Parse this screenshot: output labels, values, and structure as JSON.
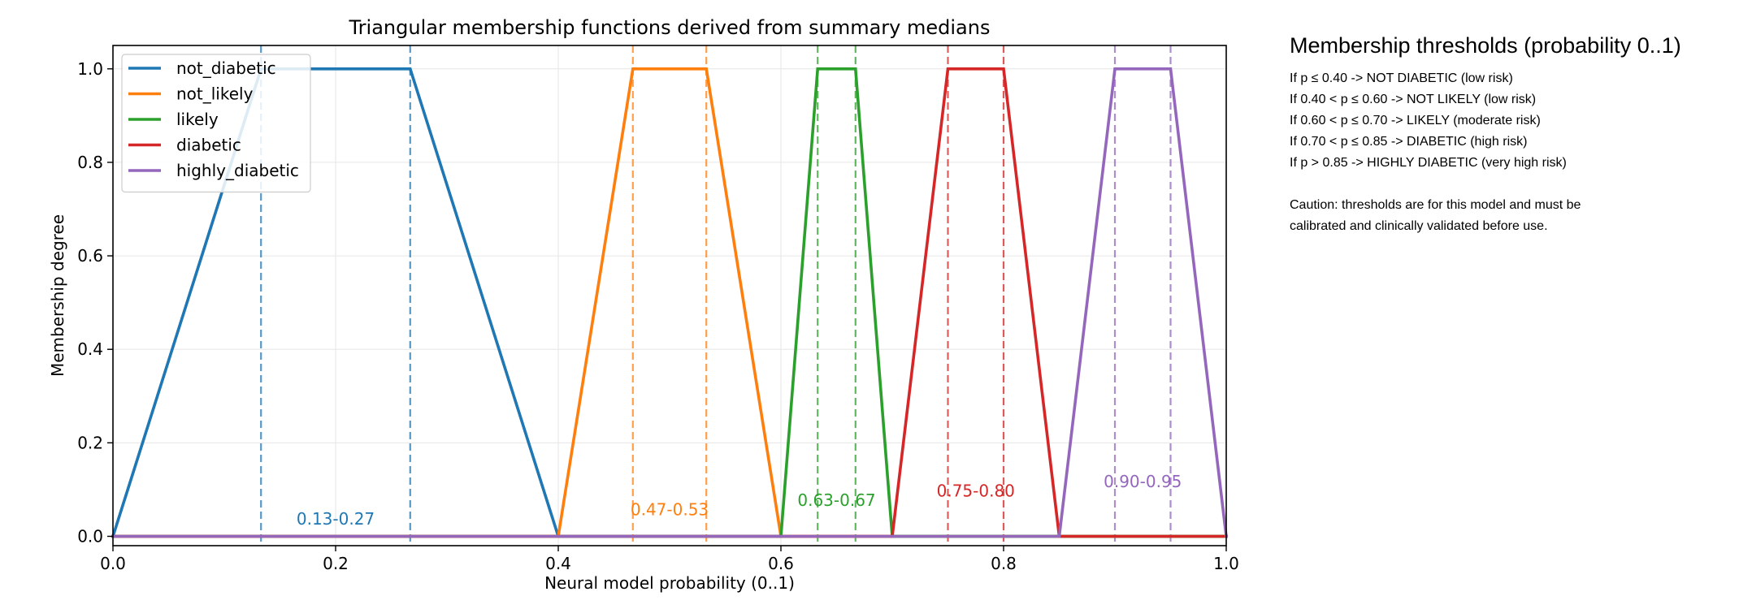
{
  "chart_data": {
    "type": "line",
    "title": "Triangular membership functions derived from summary medians",
    "xlabel": "Neural model probability (0..1)",
    "ylabel": "Membership degree",
    "xlim": [
      0.0,
      1.0
    ],
    "ylim": [
      -0.02,
      1.05
    ],
    "xticks": [
      0.0,
      0.2,
      0.4,
      0.6,
      0.8,
      1.0
    ],
    "xtick_labels": [
      "0.0",
      "0.2",
      "0.4",
      "0.6",
      "0.8",
      "1.0"
    ],
    "yticks": [
      0.0,
      0.2,
      0.4,
      0.6,
      0.8,
      1.0
    ],
    "ytick_labels": [
      "0.0",
      "0.2",
      "0.4",
      "0.6",
      "0.8",
      "1.0"
    ],
    "grid": true,
    "legend_position": "top-left",
    "series": [
      {
        "name": "not_diabetic",
        "color": "#1f77b4",
        "x": [
          0.0,
          0.133,
          0.267,
          0.4,
          1.0
        ],
        "y": [
          0.0,
          1.0,
          1.0,
          0.0,
          0.0
        ],
        "band": [
          0.133,
          0.267
        ],
        "band_label": "0.13-0.27",
        "label_x": 0.2,
        "label_y": 0.025
      },
      {
        "name": "not_likely",
        "color": "#ff7f0e",
        "x": [
          0.0,
          0.4,
          0.467,
          0.533,
          0.6,
          1.0
        ],
        "y": [
          0.0,
          0.0,
          1.0,
          1.0,
          0.0,
          0.0
        ],
        "band": [
          0.467,
          0.533
        ],
        "band_label": "0.47-0.53",
        "label_x": 0.5,
        "label_y": 0.045
      },
      {
        "name": "likely",
        "color": "#2ca02c",
        "x": [
          0.0,
          0.6,
          0.633,
          0.667,
          0.7,
          1.0
        ],
        "y": [
          0.0,
          0.0,
          1.0,
          1.0,
          0.0,
          0.0
        ],
        "band": [
          0.633,
          0.667
        ],
        "band_label": "0.63-0.67",
        "label_x": 0.65,
        "label_y": 0.065
      },
      {
        "name": "diabetic",
        "color": "#d62728",
        "x": [
          0.0,
          0.7,
          0.75,
          0.8,
          0.85,
          1.0
        ],
        "y": [
          0.0,
          0.0,
          1.0,
          1.0,
          0.0,
          0.0
        ],
        "band": [
          0.75,
          0.8
        ],
        "band_label": "0.75-0.80",
        "label_x": 0.775,
        "label_y": 0.085
      },
      {
        "name": "highly_diabetic",
        "color": "#9467bd",
        "x": [
          0.0,
          0.85,
          0.9,
          0.95,
          1.0
        ],
        "y": [
          0.0,
          0.0,
          1.0,
          1.0,
          0.0
        ],
        "band": [
          0.9,
          0.95
        ],
        "band_label": "0.90-0.95",
        "label_x": 0.925,
        "label_y": 0.105
      }
    ]
  },
  "side_panel": {
    "title": "Membership thresholds (probability 0..1)",
    "rules": [
      "If p ≤ 0.40 -> NOT DIABETIC (low risk)",
      "If 0.40 < p ≤ 0.60 -> NOT LIKELY (low risk)",
      "If 0.60 < p ≤ 0.70 -> LIKELY (moderate risk)",
      "If 0.70 < p ≤ 0.85 -> DIABETIC (high risk)",
      "If p > 0.85 -> HIGHLY DIABETIC (very high risk)"
    ],
    "caution_lines": [
      "Caution: thresholds are for this model and must be",
      "calibrated and clinically validated before use."
    ]
  }
}
